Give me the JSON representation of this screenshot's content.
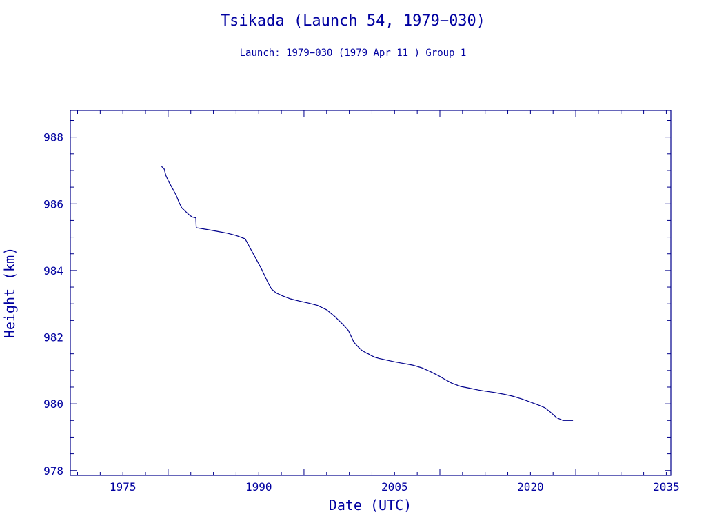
{
  "chart_data": {
    "type": "line",
    "title": "Tsikada (Launch 54, 1979−030)",
    "subtitle": "Launch: 1979−030  (1979 Apr 11 )  Group 1",
    "xlabel": "Date (UTC)",
    "ylabel": "Height (km)",
    "xlim": [
      1969.2,
      2035.5
    ],
    "ylim": [
      977.85,
      988.8
    ],
    "xticks": [
      1975,
      1990,
      2005,
      2020,
      2035
    ],
    "xtick_labels": [
      "1975",
      "1990",
      "2005",
      "2020",
      "2035"
    ],
    "yticks": [
      978,
      980,
      982,
      984,
      986,
      988
    ],
    "ytick_labels": [
      "978",
      "980",
      "982",
      "984",
      "986",
      "988"
    ],
    "grid": false,
    "color": "#00008b",
    "series": [
      {
        "x": [
          1979.28,
          1979.55,
          1979.75,
          1980.0,
          1980.3,
          1980.6,
          1980.9,
          1981.2,
          1981.5,
          1982.0,
          1982.4,
          1982.7,
          1983.05,
          1983.1,
          1983.15,
          1983.6,
          1984.5,
          1985.5,
          1986.5,
          1987.5,
          1988.5,
          1988.8,
          1989.1,
          1989.5,
          1989.9,
          1990.3,
          1990.9,
          1991.4,
          1991.9,
          1992.6,
          1993.5,
          1994.5,
          1995.5,
          1996.5,
          1997.5,
          1998.4,
          1999.3,
          1999.9,
          2000.5,
          2001.0,
          2001.4,
          2001.9,
          2002.1,
          2002.4,
          2002.8,
          2003.3,
          2004.0,
          2005.0,
          2006.0,
          2007.0,
          2008.0,
          2009.0,
          2010.0,
          2010.5,
          2011.3,
          2012.3,
          2013.4,
          2014.3,
          2015.0,
          2016.0,
          2017.0,
          2018.0,
          2019.0,
          2020.0,
          2021.0,
          2021.6,
          2022.2,
          2022.9,
          2023.6,
          2024.3,
          2024.7
        ],
        "y": [
          987.12,
          987.05,
          986.85,
          986.7,
          986.55,
          986.4,
          986.25,
          986.05,
          985.88,
          985.75,
          985.65,
          985.6,
          985.58,
          985.3,
          985.28,
          985.26,
          985.22,
          985.17,
          985.12,
          985.05,
          984.95,
          984.8,
          984.65,
          984.45,
          984.25,
          984.05,
          983.7,
          983.45,
          983.33,
          983.24,
          983.15,
          983.08,
          983.02,
          982.95,
          982.82,
          982.62,
          982.38,
          982.2,
          981.85,
          981.7,
          981.6,
          981.52,
          981.5,
          981.45,
          981.4,
          981.36,
          981.32,
          981.26,
          981.21,
          981.16,
          981.08,
          980.96,
          980.82,
          980.74,
          980.62,
          980.52,
          980.46,
          980.41,
          980.38,
          980.34,
          980.29,
          980.23,
          980.15,
          980.05,
          979.95,
          979.88,
          979.75,
          979.58,
          979.5,
          979.5,
          979.5
        ]
      }
    ]
  }
}
